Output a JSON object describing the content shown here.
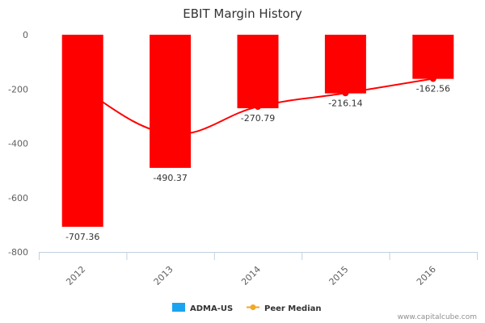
{
  "chart_data": {
    "type": "bar",
    "title": "EBIT Margin History",
    "categories": [
      "2012",
      "2013",
      "2014",
      "2015",
      "2016"
    ],
    "series": [
      {
        "name": "ADMA-US",
        "kind": "bar",
        "values": [
          -707.36,
          -490.37,
          -270.79,
          -216.14,
          -162.56
        ],
        "labels": [
          "-707.36",
          "-490.37",
          "-270.79",
          "-216.14",
          "-162.56"
        ]
      },
      {
        "name": "Peer Median",
        "kind": "line",
        "values": [
          -200,
          -365,
          -265,
          -215,
          -162
        ]
      }
    ],
    "ylim": [
      -800,
      0
    ],
    "yticks": [
      0,
      -200,
      -400,
      -600,
      -800
    ],
    "ytick_labels": [
      "0",
      "-200",
      "-400",
      "-600",
      "-800"
    ],
    "grid": false,
    "legend_position": "bottom",
    "colors": {
      "bar": "#ff0000",
      "line": "#ff0000",
      "legend_bar_swatch": "#1aa3f0",
      "legend_line_swatch": "#f5a623"
    }
  },
  "credit": "www.capitalcube.com"
}
